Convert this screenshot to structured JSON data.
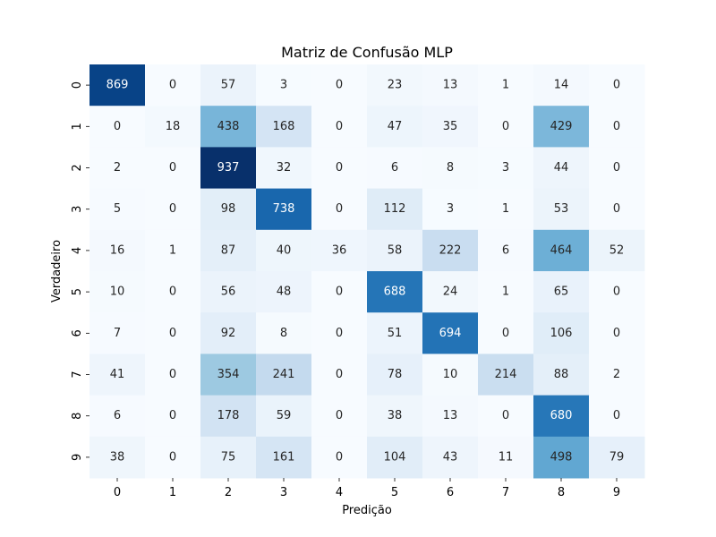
{
  "chart_data": {
    "type": "heatmap",
    "title": "Matriz de Confusão MLP",
    "xlabel": "Predição",
    "ylabel": "Verdadeiro",
    "x_categories": [
      "0",
      "1",
      "2",
      "3",
      "4",
      "5",
      "6",
      "7",
      "8",
      "9"
    ],
    "y_categories": [
      "0",
      "1",
      "2",
      "3",
      "4",
      "5",
      "6",
      "7",
      "8",
      "9"
    ],
    "colormap": "Blues",
    "value_range": [
      0,
      937
    ],
    "values": [
      [
        869,
        0,
        57,
        3,
        0,
        23,
        13,
        1,
        14,
        0
      ],
      [
        0,
        18,
        438,
        168,
        0,
        47,
        35,
        0,
        429,
        0
      ],
      [
        2,
        0,
        937,
        32,
        0,
        6,
        8,
        3,
        44,
        0
      ],
      [
        5,
        0,
        98,
        738,
        0,
        112,
        3,
        1,
        53,
        0
      ],
      [
        16,
        1,
        87,
        40,
        36,
        58,
        222,
        6,
        464,
        52
      ],
      [
        10,
        0,
        56,
        48,
        0,
        688,
        24,
        1,
        65,
        0
      ],
      [
        7,
        0,
        92,
        8,
        0,
        51,
        694,
        0,
        106,
        0
      ],
      [
        41,
        0,
        354,
        241,
        0,
        78,
        10,
        214,
        88,
        2
      ],
      [
        6,
        0,
        178,
        59,
        0,
        38,
        13,
        0,
        680,
        0
      ],
      [
        38,
        0,
        75,
        161,
        0,
        104,
        43,
        11,
        498,
        79
      ]
    ]
  }
}
